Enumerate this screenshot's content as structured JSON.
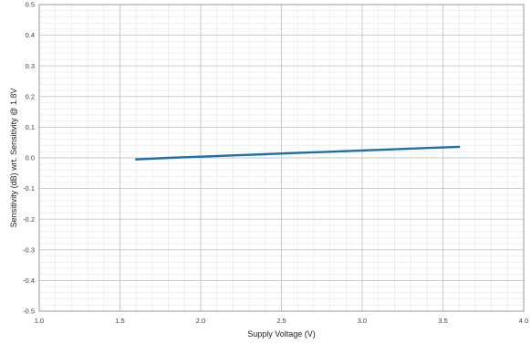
{
  "chart_data": {
    "type": "line",
    "xlabel": "Supply Voltage (V)",
    "ylabel": "Sensitivity (dB) wrt. Sensitivity @ 1.8V",
    "xlim": [
      1.0,
      4.0
    ],
    "ylim": [
      -0.5,
      0.5
    ],
    "x_ticks": [
      "1.0",
      "1.5",
      "2.0",
      "2.5",
      "3.0",
      "3.5",
      "4.0"
    ],
    "y_ticks": [
      "0.5",
      "0.4",
      "0.3",
      "0.2",
      "0.1",
      "0.0",
      "-0.1",
      "-0.2",
      "-0.3",
      "-0.4",
      "-0.5"
    ],
    "grid": true,
    "series": [
      {
        "color": "#1f6fa8",
        "x": [
          1.6,
          1.8,
          2.0,
          2.2,
          2.4,
          2.6,
          2.8,
          3.0,
          3.2,
          3.4,
          3.6
        ],
        "y": [
          -0.005,
          0.0,
          0.004,
          0.008,
          0.012,
          0.016,
          0.02,
          0.024,
          0.028,
          0.032,
          0.036
        ]
      }
    ]
  }
}
